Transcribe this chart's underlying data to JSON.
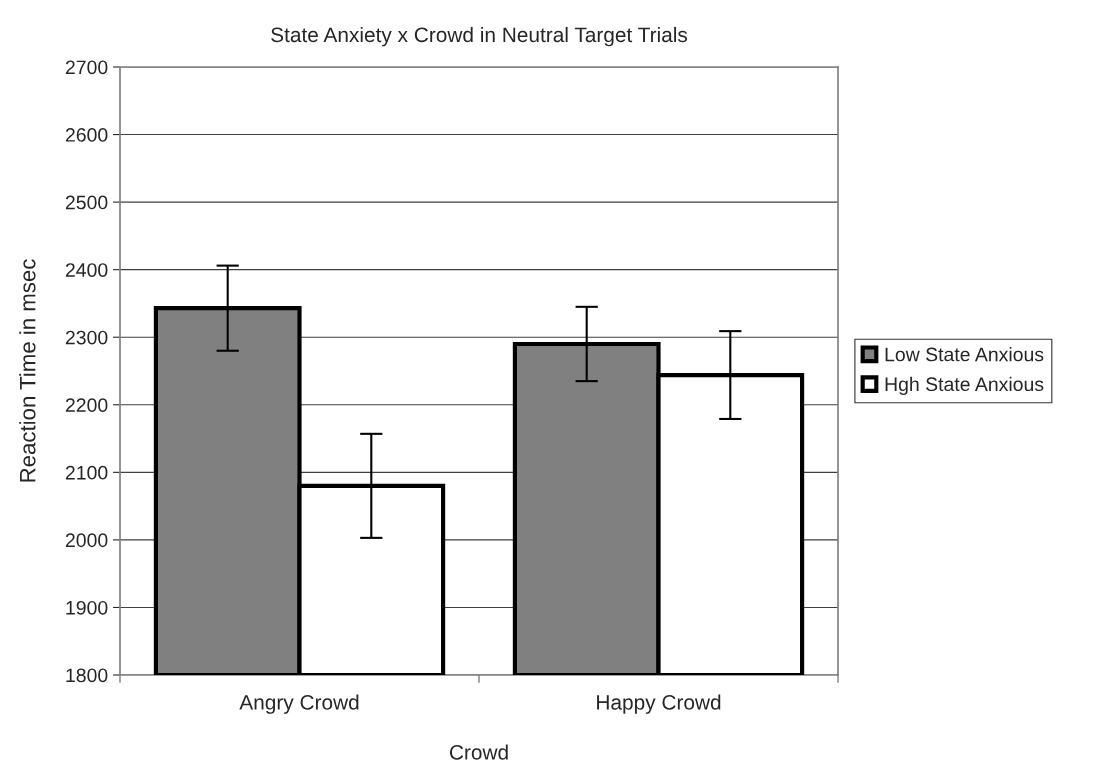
{
  "chart_data": {
    "type": "bar",
    "title": "State Anxiety x Crowd in Neutral Target Trials",
    "xlabel": "Crowd",
    "ylabel": "Reaction Time in msec",
    "categories": [
      "Angry Crowd",
      "Happy Crowd"
    ],
    "series": [
      {
        "name": "Low State Anxious",
        "color": "#808080",
        "values": [
          2343,
          2290
        ],
        "errors": [
          63,
          55
        ]
      },
      {
        "name": "Hgh State Anxious",
        "color": "#ffffff",
        "values": [
          2080,
          2244
        ],
        "errors": [
          77,
          65
        ]
      }
    ],
    "ylim": [
      1800,
      2700
    ],
    "yticks": [
      1800,
      1900,
      2000,
      2100,
      2200,
      2300,
      2400,
      2500,
      2600,
      2700
    ],
    "grid": "y",
    "legend": "right"
  }
}
